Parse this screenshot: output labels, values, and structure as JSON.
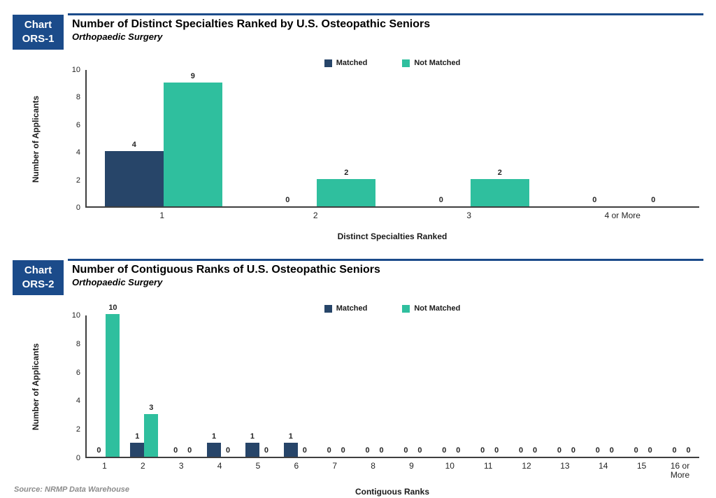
{
  "colors": {
    "matched": "#274569",
    "not_matched": "#2fbf9e",
    "badge_bg": "#1b4b8a",
    "axis": "#3f3f3f",
    "source_text": "#8c8c8c"
  },
  "footer": {
    "source_note": "Source: NRMP Data Warehouse"
  },
  "chart_data": [
    {
      "type": "bar",
      "badge_line1": "Chart",
      "badge_line2": "ORS-1",
      "title": "Number of Distinct Specialties Ranked by U.S. Osteopathic Seniors",
      "subtitle": "Orthopaedic Surgery",
      "categories": [
        "1",
        "2",
        "3",
        "4 or More"
      ],
      "series": [
        {
          "name": "Matched",
          "values": [
            4,
            0,
            0,
            0
          ]
        },
        {
          "name": "Not Matched",
          "values": [
            9,
            2,
            2,
            0
          ]
        }
      ],
      "xlabel": "Distinct Specialties Ranked",
      "ylabel": "Number of Applicants",
      "ylim": [
        0,
        10
      ],
      "yticks": [
        0,
        2,
        4,
        6,
        8,
        10
      ],
      "legend_position": "top-center",
      "grid": false
    },
    {
      "type": "bar",
      "badge_line1": "Chart",
      "badge_line2": "ORS-2",
      "title": "Number of Contiguous Ranks of U.S. Osteopathic Seniors",
      "subtitle": "Orthopaedic Surgery",
      "categories": [
        "1",
        "2",
        "3",
        "4",
        "5",
        "6",
        "7",
        "8",
        "9",
        "10",
        "11",
        "12",
        "13",
        "14",
        "15",
        "16 or More"
      ],
      "series": [
        {
          "name": "Matched",
          "values": [
            0,
            1,
            0,
            1,
            1,
            1,
            0,
            0,
            0,
            0,
            0,
            0,
            0,
            0,
            0,
            0
          ]
        },
        {
          "name": "Not Matched",
          "values": [
            10,
            3,
            0,
            0,
            0,
            0,
            0,
            0,
            0,
            0,
            0,
            0,
            0,
            0,
            0,
            0
          ]
        }
      ],
      "xlabel": "Contiguous Ranks",
      "ylabel": "Number of Applicants",
      "ylim": [
        0,
        10
      ],
      "yticks": [
        0,
        2,
        4,
        6,
        8,
        10
      ],
      "legend_position": "top-center",
      "grid": false
    }
  ]
}
